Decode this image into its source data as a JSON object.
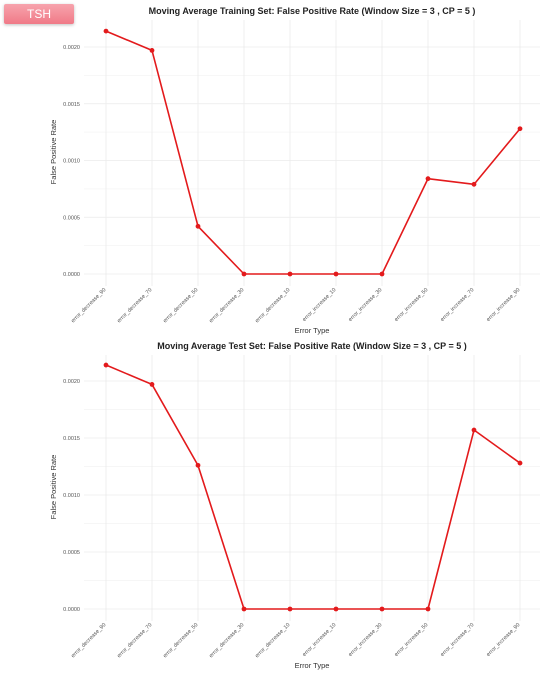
{
  "badge": {
    "label": "TSH"
  },
  "colors": {
    "line": "#e31a1c",
    "grid": "#ebebeb"
  },
  "chart_data": [
    {
      "type": "line",
      "title": "Moving Average Training Set: False Positive Rate (Window Size = 3 , CP = 5 )",
      "xlabel": "Error Type",
      "ylabel": "False Positive Rate",
      "categories": [
        "error_decrease_90",
        "error_decrease_70",
        "error_decrease_50",
        "error_decrease_30",
        "error_decrease_10",
        "error_increase_10",
        "error_increase_30",
        "error_increase_50",
        "error_increase_70",
        "error_increase_90"
      ],
      "yticks": [
        "0.0000",
        "0.0005",
        "0.0010",
        "0.0015",
        "0.0020"
      ],
      "ylim": [
        0,
        0.0021
      ],
      "series": [
        {
          "values": [
            0.00214,
            0.00197,
            0.00042,
            0,
            0,
            0,
            0,
            0.00084,
            0.00079,
            0.00128
          ]
        }
      ],
      "grid": true
    },
    {
      "type": "line",
      "title": "Moving Average Test Set: False Positive Rate (Window Size = 3 , CP = 5 )",
      "xlabel": "Error Type",
      "ylabel": "False Positive Rate",
      "categories": [
        "error_decrease_90",
        "error_decrease_70",
        "error_decrease_50",
        "error_decrease_30",
        "error_decrease_10",
        "error_increase_10",
        "error_increase_30",
        "error_increase_50",
        "error_increase_70",
        "error_increase_90"
      ],
      "yticks": [
        "0.0000",
        "0.0005",
        "0.0010",
        "0.0015",
        "0.0020"
      ],
      "ylim": [
        0,
        0.0021
      ],
      "series": [
        {
          "values": [
            0.00214,
            0.00197,
            0.00126,
            0,
            0,
            0,
            0,
            0,
            0.00157,
            0.00128
          ]
        }
      ],
      "grid": true
    }
  ]
}
